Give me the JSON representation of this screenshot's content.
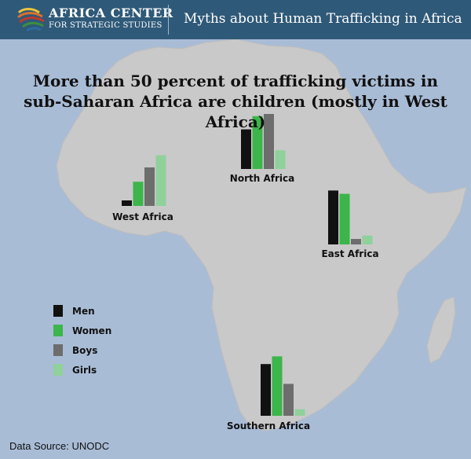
{
  "header": {
    "logo_name": "AFRICA CENTER",
    "logo_subtitle": "FOR STRATEGIC STUDIES",
    "title": "Myths about Human Trafficking in Africa"
  },
  "headline": {
    "line1": "More than 50 percent of trafficking victims in",
    "line2": "sub-Saharan Africa are children (mostly in West Africa)"
  },
  "legend": [
    {
      "label": "Men",
      "color": "#111111"
    },
    {
      "label": "Women",
      "color": "#3cb54a"
    },
    {
      "label": "Boys",
      "color": "#6d6d6d"
    },
    {
      "label": "Girls",
      "color": "#8fd19a"
    }
  ],
  "chart_data": {
    "type": "bar",
    "series_names": [
      "Men",
      "Women",
      "Boys",
      "Girls"
    ],
    "colors": [
      "#111111",
      "#3cb54a",
      "#6d6d6d",
      "#8fd19a"
    ],
    "regions": [
      {
        "name": "North Africa",
        "values": [
          36,
          48,
          50,
          17
        ]
      },
      {
        "name": "West Africa",
        "values": [
          5,
          22,
          35,
          46
        ]
      },
      {
        "name": "East Africa",
        "values": [
          49,
          46,
          5,
          8
        ]
      },
      {
        "name": "Southern Africa",
        "values": [
          47,
          54,
          29,
          6
        ]
      }
    ]
  },
  "source": "Data Source: UNODC"
}
